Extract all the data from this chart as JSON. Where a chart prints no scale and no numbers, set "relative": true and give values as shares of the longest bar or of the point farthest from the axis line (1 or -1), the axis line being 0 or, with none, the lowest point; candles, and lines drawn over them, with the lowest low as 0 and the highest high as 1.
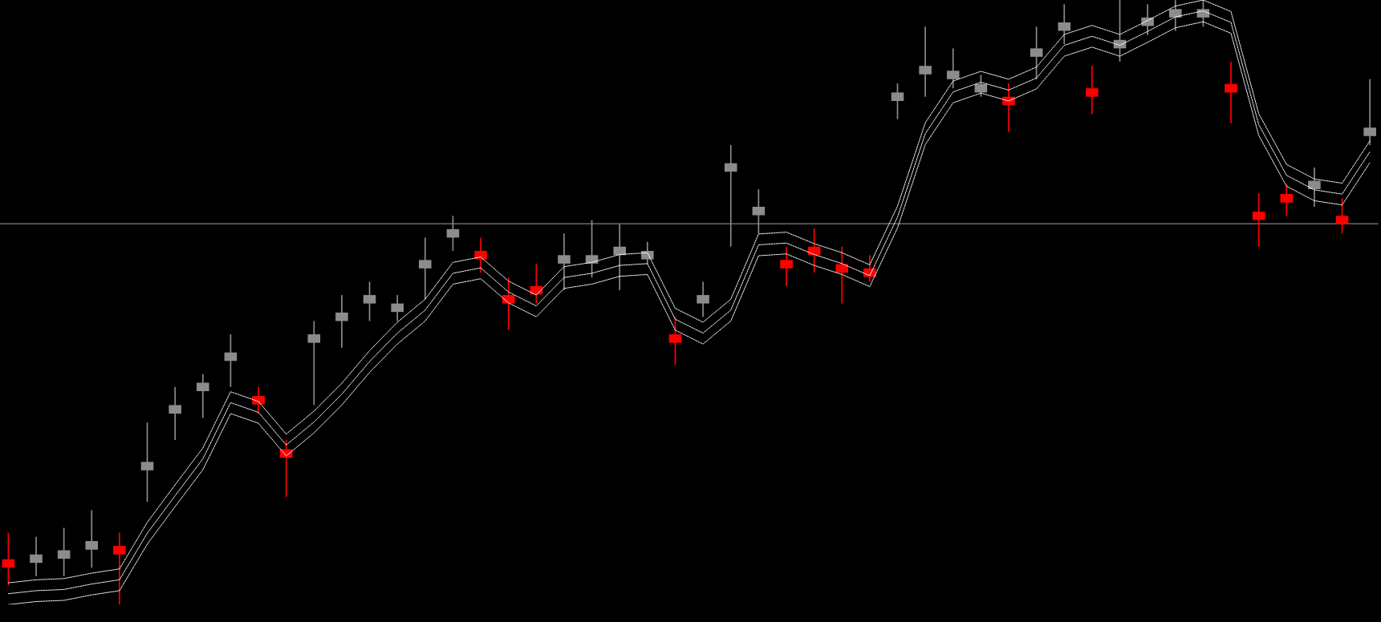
{
  "chart_data": [
    {
      "type": "candlestick",
      "relative": true,
      "categories": [
        null,
        null,
        null,
        null,
        null,
        null,
        null,
        null,
        null,
        null,
        null,
        null,
        null,
        null,
        null,
        null,
        null,
        null,
        null,
        null,
        null,
        null,
        null,
        null,
        null,
        null,
        null,
        null,
        null,
        null,
        null,
        null,
        null,
        null,
        null,
        null,
        null,
        null,
        null,
        null,
        null,
        null,
        null,
        null,
        null,
        null,
        null,
        null,
        null,
        null
      ],
      "ohlc": [
        [
          0.075,
          0.119,
          0.032,
          0.061
        ],
        [
          0.069,
          0.112,
          0.047,
          0.083
        ],
        [
          0.076,
          0.127,
          0.047,
          0.09
        ],
        [
          0.091,
          0.156,
          0.061,
          0.105
        ],
        [
          0.097,
          0.119,
          0.0,
          0.083
        ],
        [
          0.222,
          0.301,
          0.17,
          0.236
        ],
        [
          0.316,
          0.36,
          0.272,
          0.33
        ],
        [
          0.353,
          0.381,
          0.309,
          0.367
        ],
        [
          0.403,
          0.447,
          0.36,
          0.417
        ],
        [
          0.345,
          0.36,
          0.316,
          0.331
        ],
        [
          0.257,
          0.272,
          0.178,
          0.243
        ],
        [
          0.433,
          0.469,
          0.33,
          0.447
        ],
        [
          0.469,
          0.512,
          0.425,
          0.483
        ],
        [
          0.498,
          0.534,
          0.469,
          0.512
        ],
        [
          0.484,
          0.512,
          0.469,
          0.498
        ],
        [
          0.556,
          0.607,
          0.505,
          0.57
        ],
        [
          0.607,
          0.643,
          0.585,
          0.621
        ],
        [
          0.585,
          0.607,
          0.549,
          0.571
        ],
        [
          0.512,
          0.541,
          0.454,
          0.498
        ],
        [
          0.527,
          0.563,
          0.498,
          0.513
        ],
        [
          0.564,
          0.614,
          0.52,
          0.578
        ],
        [
          0.564,
          0.636,
          0.541,
          0.578
        ],
        [
          0.578,
          0.629,
          0.52,
          0.592
        ],
        [
          0.571,
          0.6,
          0.563,
          0.585
        ],
        [
          0.447,
          0.476,
          0.396,
          0.433
        ],
        [
          0.498,
          0.534,
          0.476,
          0.512
        ],
        [
          0.716,
          0.76,
          0.592,
          0.73
        ],
        [
          0.644,
          0.687,
          0.614,
          0.658
        ],
        [
          0.57,
          0.592,
          0.527,
          0.556
        ],
        [
          0.592,
          0.622,
          0.549,
          0.578
        ],
        [
          0.563,
          0.592,
          0.498,
          0.549
        ],
        [
          0.556,
          0.578,
          0.534,
          0.542
        ],
        [
          0.833,
          0.862,
          0.803,
          0.847
        ],
        [
          0.877,
          0.956,
          0.84,
          0.891
        ],
        [
          0.869,
          0.92,
          0.854,
          0.883
        ],
        [
          0.847,
          0.876,
          0.84,
          0.861
        ],
        [
          0.84,
          0.862,
          0.782,
          0.826
        ],
        [
          0.906,
          0.956,
          0.869,
          0.92
        ],
        [
          0.949,
          0.993,
          0.927,
          0.963
        ],
        [
          0.854,
          0.891,
          0.811,
          0.84
        ],
        [
          0.92,
          1.0,
          0.898,
          0.934
        ],
        [
          0.957,
          0.993,
          0.942,
          0.971
        ],
        [
          0.971,
          1.0,
          0.949,
          0.985
        ],
        [
          0.971,
          1.0,
          0.956,
          0.985
        ],
        [
          0.861,
          0.898,
          0.796,
          0.847
        ],
        [
          0.65,
          0.68,
          0.592,
          0.636
        ],
        [
          0.679,
          0.694,
          0.643,
          0.665
        ],
        [
          0.687,
          0.723,
          0.658,
          0.701
        ],
        [
          0.643,
          0.672,
          0.614,
          0.629
        ],
        [
          0.775,
          0.869,
          0.76,
          0.789
        ]
      ],
      "colors": [
        "#ff0000",
        "#8c8c8c",
        "#8c8c8c",
        "#8c8c8c",
        "#ff0000",
        "#8c8c8c",
        "#8c8c8c",
        "#8c8c8c",
        "#8c8c8c",
        "#ff0000",
        "#ff0000",
        "#8c8c8c",
        "#8c8c8c",
        "#8c8c8c",
        "#8c8c8c",
        "#8c8c8c",
        "#8c8c8c",
        "#ff0000",
        "#ff0000",
        "#ff0000",
        "#8c8c8c",
        "#8c8c8c",
        "#8c8c8c",
        "#8c8c8c",
        "#ff0000",
        "#8c8c8c",
        "#8c8c8c",
        "#8c8c8c",
        "#ff0000",
        "#ff0000",
        "#ff0000",
        "#ff0000",
        "#8c8c8c",
        "#8c8c8c",
        "#8c8c8c",
        "#8c8c8c",
        "#ff0000",
        "#8c8c8c",
        "#8c8c8c",
        "#ff0000",
        "#8c8c8c",
        "#8c8c8c",
        "#8c8c8c",
        "#8c8c8c",
        "#ff0000",
        "#ff0000",
        "#ff0000",
        "#8c8c8c",
        "#ff0000",
        "#8c8c8c"
      ],
      "ref_lines": [
        {
          "axis": "y",
          "value": 0.63,
          "color": "#808080"
        }
      ]
    },
    {
      "type": "line",
      "relative": true,
      "line_style": "dashed",
      "categories": [
        null,
        null,
        null,
        null,
        null,
        null,
        null,
        null,
        null,
        null,
        null,
        null,
        null,
        null,
        null,
        null,
        null,
        null,
        null,
        null,
        null,
        null,
        null,
        null,
        null,
        null,
        null,
        null,
        null,
        null,
        null,
        null,
        null,
        null,
        null,
        null,
        null,
        null,
        null,
        null,
        null,
        null,
        null,
        null,
        null,
        null,
        null,
        null,
        null,
        null
      ],
      "series": [
        {
          "color": "#ffffff",
          "values": [
            0.036,
            0.041,
            0.043,
            0.052,
            0.059,
            0.136,
            0.198,
            0.259,
            0.352,
            0.336,
            0.282,
            0.32,
            0.366,
            0.42,
            0.467,
            0.505,
            0.566,
            0.575,
            0.535,
            0.512,
            0.559,
            0.566,
            0.579,
            0.582,
            0.49,
            0.467,
            0.505,
            0.613,
            0.616,
            0.597,
            0.582,
            0.562,
            0.659,
            0.797,
            0.866,
            0.882,
            0.869,
            0.889,
            0.943,
            0.958,
            0.943,
            0.966,
            0.99,
            1.0,
            0.981,
            0.812,
            0.728,
            0.704,
            0.697,
            0.767
          ]
        },
        {
          "color": "#ffffff",
          "values": [
            0.018,
            0.023,
            0.025,
            0.034,
            0.041,
            0.118,
            0.18,
            0.241,
            0.334,
            0.318,
            0.264,
            0.302,
            0.348,
            0.402,
            0.449,
            0.487,
            0.548,
            0.557,
            0.517,
            0.494,
            0.541,
            0.548,
            0.561,
            0.564,
            0.472,
            0.449,
            0.487,
            0.595,
            0.598,
            0.579,
            0.564,
            0.544,
            0.641,
            0.779,
            0.848,
            0.864,
            0.851,
            0.871,
            0.925,
            0.94,
            0.925,
            0.948,
            0.972,
            0.982,
            0.963,
            0.794,
            0.71,
            0.686,
            0.679,
            0.749
          ]
        },
        {
          "color": "#ffffff",
          "values": [
            0.0,
            0.005,
            0.007,
            0.016,
            0.023,
            0.1,
            0.162,
            0.223,
            0.316,
            0.3,
            0.246,
            0.284,
            0.33,
            0.384,
            0.431,
            0.469,
            0.53,
            0.539,
            0.499,
            0.476,
            0.523,
            0.53,
            0.543,
            0.546,
            0.454,
            0.431,
            0.469,
            0.577,
            0.58,
            0.561,
            0.546,
            0.526,
            0.623,
            0.761,
            0.83,
            0.846,
            0.833,
            0.853,
            0.907,
            0.922,
            0.907,
            0.93,
            0.954,
            0.964,
            0.945,
            0.776,
            0.692,
            0.668,
            0.661,
            0.731
          ]
        }
      ]
    }
  ]
}
